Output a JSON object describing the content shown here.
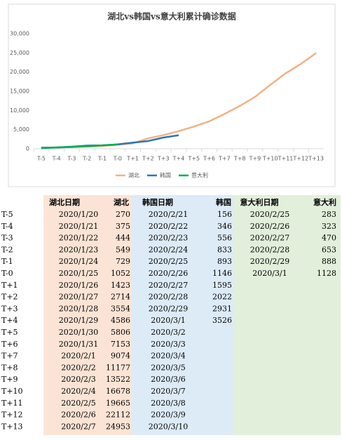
{
  "chart_data": {
    "type": "line",
    "title": "湖北vs韩国vs意大利累计确诊数据",
    "categories": [
      "T-5",
      "T-4",
      "T-3",
      "T-2",
      "T-1",
      "T-0",
      "T+1",
      "T+2",
      "T+3",
      "T+4",
      "T+5",
      "T+6",
      "T+7",
      "T+8",
      "T+9",
      "T+10",
      "T+11",
      "T+12",
      "T+13"
    ],
    "series": [
      {
        "name": "湖北",
        "color": "#f4b183",
        "values": [
          270,
          375,
          444,
          549,
          729,
          1052,
          1423,
          2714,
          3554,
          4586,
          5806,
          7153,
          9074,
          11177,
          13522,
          16678,
          19665,
          22112,
          24953
        ]
      },
      {
        "name": "韩国",
        "color": "#2e75b6",
        "values": [
          156,
          346,
          556,
          833,
          893,
          1146,
          1595,
          2022,
          2931,
          3526,
          null,
          null,
          null,
          null,
          null,
          null,
          null,
          null,
          null
        ]
      },
      {
        "name": "意大利",
        "color": "#00b050",
        "values": [
          283,
          323,
          470,
          653,
          888,
          1128,
          null,
          null,
          null,
          null,
          null,
          null,
          null,
          null,
          null,
          null,
          null,
          null,
          null
        ]
      }
    ],
    "ylim": [
      0,
      30000
    ],
    "yticks": [
      0,
      {
        "value": 5000,
        "label": "5,000"
      },
      {
        "value": 10000,
        "label": "10,000"
      },
      {
        "value": 15000,
        "label": "15,000"
      },
      {
        "value": 20000,
        "label": "20,000"
      },
      {
        "value": 25000,
        "label": "25,000"
      },
      {
        "value": 30000,
        "label": "30,000"
      }
    ],
    "legend": "bottom"
  },
  "table": {
    "columns": [
      null,
      "湖北日期",
      "湖北",
      "韩国日期",
      "韩国",
      "意大利日期",
      "意大利"
    ],
    "rows": [
      [
        "T-5",
        "2020/1/20",
        270,
        "2020/2/21",
        156,
        "2020/2/25",
        283
      ],
      [
        "T-4",
        "2020/1/21",
        375,
        "2020/2/22",
        346,
        "2020/2/26",
        323
      ],
      [
        "T-3",
        "2020/1/22",
        444,
        "2020/2/23",
        556,
        "2020/2/27",
        470
      ],
      [
        "T-2",
        "2020/1/23",
        549,
        "2020/2/24",
        833,
        "2020/2/28",
        653
      ],
      [
        "T-1",
        "2020/1/24",
        729,
        "2020/2/25",
        893,
        "2020/2/29",
        888
      ],
      [
        "T-0",
        "2020/1/25",
        1052,
        "2020/2/26",
        1146,
        "2020/3/1",
        1128
      ],
      [
        "T+1",
        "2020/1/26",
        1423,
        "2020/2/27",
        1595,
        null,
        null
      ],
      [
        "T+2",
        "2020/1/27",
        2714,
        "2020/2/28",
        2022,
        null,
        null
      ],
      [
        "T+3",
        "2020/1/28",
        3554,
        "2020/2/29",
        2931,
        null,
        null
      ],
      [
        "T+4",
        "2020/1/29",
        4586,
        "2020/3/1",
        3526,
        null,
        null
      ],
      [
        "T+5",
        "2020/1/30",
        5806,
        "2020/3/2",
        null,
        null,
        null
      ],
      [
        "T+6",
        "2020/1/31",
        7153,
        "2020/3/3",
        null,
        null,
        null
      ],
      [
        "T+7",
        "2020/2/1",
        9074,
        "2020/3/4",
        null,
        null,
        null
      ],
      [
        "T+8",
        "2020/2/2",
        11177,
        "2020/3/5",
        null,
        null,
        null
      ],
      [
        "T+9",
        "2020/2/3",
        13522,
        "2020/3/6",
        null,
        null,
        null
      ],
      [
        "T+10",
        "2020/2/4",
        16678,
        "2020/3/7",
        null,
        null,
        null
      ],
      [
        "T+11",
        "2020/2/5",
        19665,
        "2020/3/8",
        null,
        null,
        null
      ],
      [
        "T+12",
        "2020/2/6",
        22112,
        "2020/3/9",
        null,
        null,
        null
      ],
      [
        "T+13",
        "2020/2/7",
        24953,
        "2020/3/10",
        null,
        null,
        null
      ]
    ]
  }
}
